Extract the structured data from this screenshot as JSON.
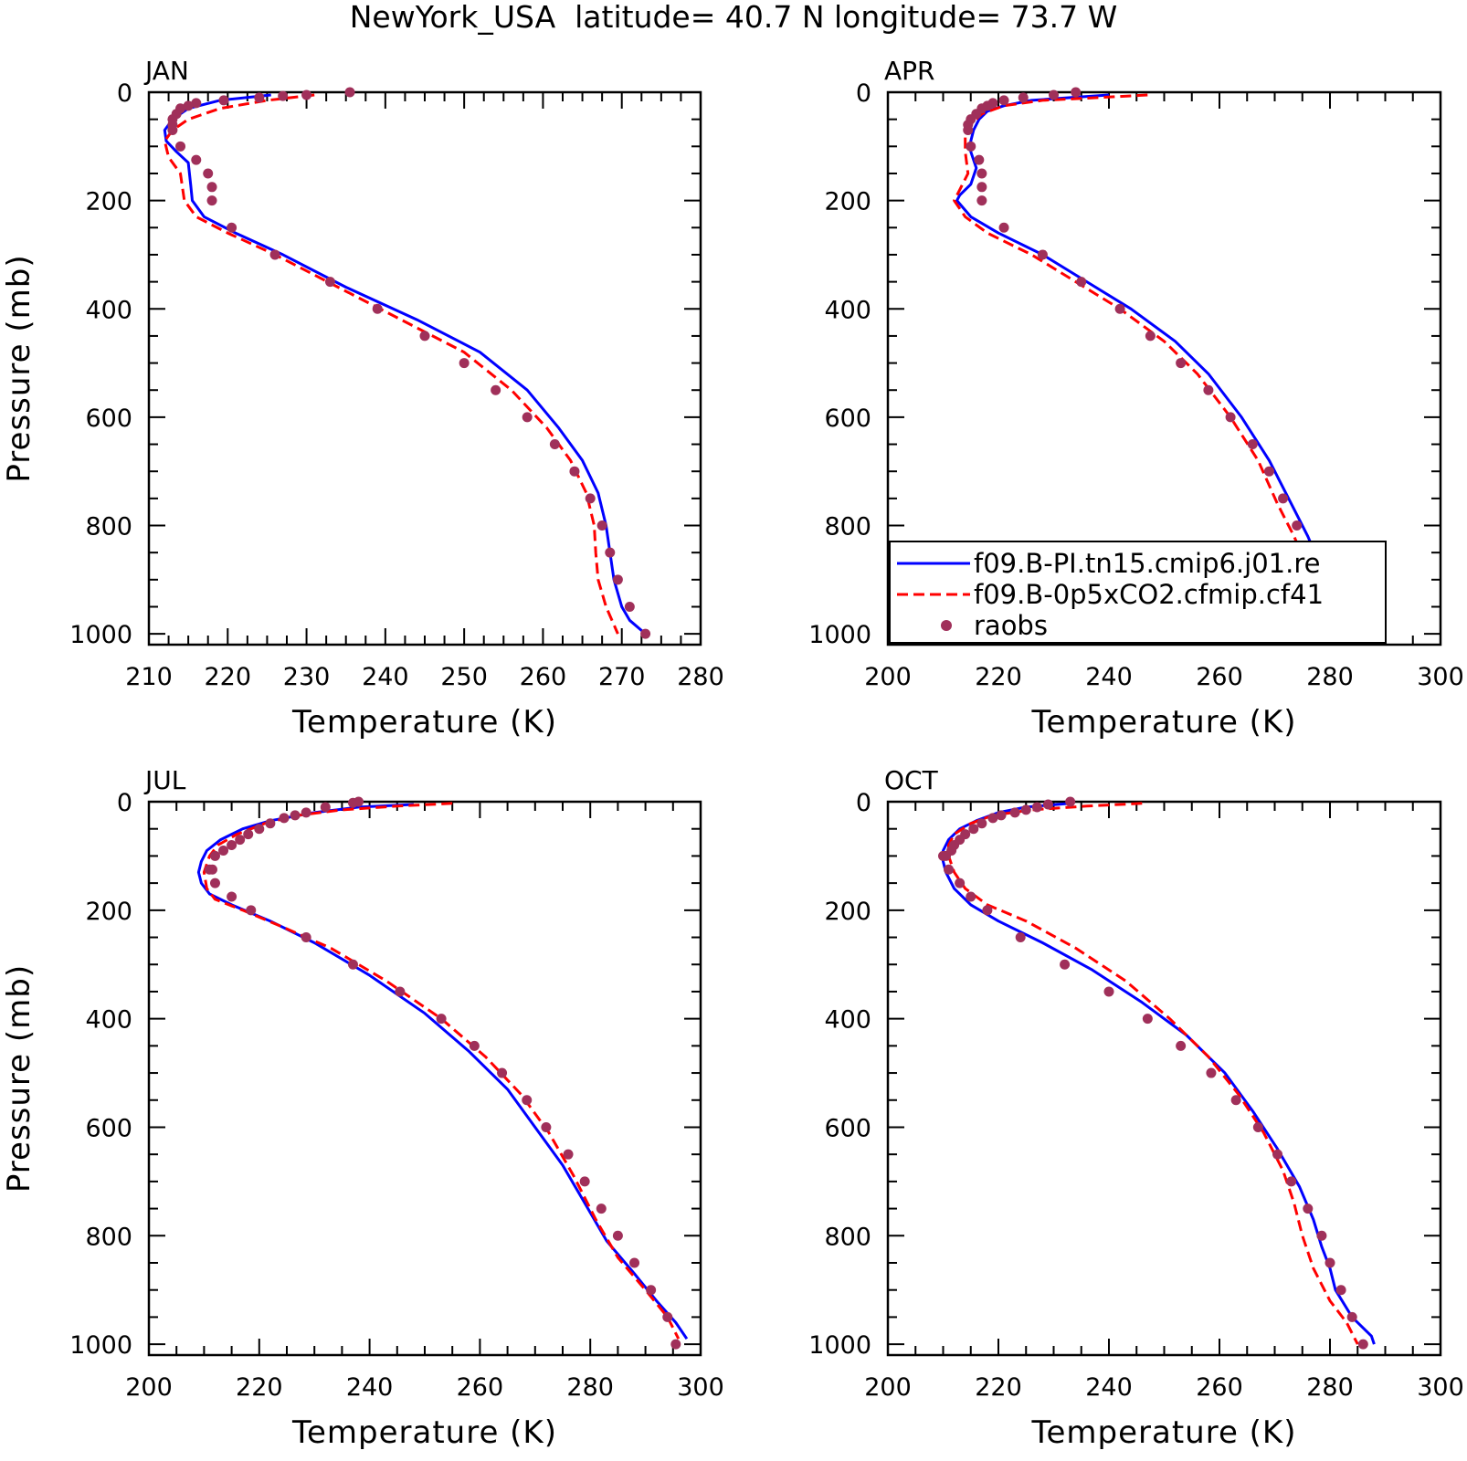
{
  "figure": {
    "title": "NewYork_USA  latitude= 40.7 N longitude= 73.7 W"
  },
  "legend": {
    "entries": [
      {
        "label": "f09.B-PI.tn15.cmip6.j01.re",
        "color": "#0000ff",
        "style": "solid"
      },
      {
        "label": "f09.B-0p5xCO2.cfmip.cf41",
        "color": "#ff0000",
        "style": "dashed"
      },
      {
        "label": "raobs",
        "color": "#a0305a",
        "style": "dots"
      }
    ]
  },
  "chart_data": [
    {
      "type": "line",
      "panel": "JAN",
      "title": "JAN",
      "xlabel": "Temperature (K)",
      "ylabel": "Pressure (mb)",
      "xlim": [
        210,
        280
      ],
      "ylim": [
        1020,
        0
      ],
      "xticks": [
        210,
        220,
        230,
        240,
        250,
        260,
        270,
        280
      ],
      "yticks": [
        0,
        200,
        400,
        600,
        800,
        1000
      ],
      "series": [
        {
          "name": "f09.B-PI.tn15.cmip6.j01.re",
          "color": "#0000ff",
          "style": "solid",
          "x": [
            225.5,
            219,
            215,
            213,
            212,
            212.2,
            213.5,
            215,
            215.3,
            215.5,
            217,
            221,
            227,
            235,
            244,
            252,
            258,
            262,
            265,
            267,
            268,
            268.5,
            269,
            270,
            271,
            273
          ],
          "y": [
            5,
            15,
            30,
            50,
            70,
            90,
            110,
            130,
            170,
            200,
            230,
            260,
            300,
            360,
            420,
            480,
            550,
            620,
            680,
            740,
            800,
            850,
            900,
            950,
            975,
            1000
          ]
        },
        {
          "name": "f09.B-0p5xCO2.cfmip.cf41",
          "color": "#ff0000",
          "style": "dashed",
          "x": [
            231,
            225,
            219,
            215,
            213,
            212,
            212.5,
            214,
            214.3,
            214.5,
            216,
            220,
            226,
            234,
            242,
            250,
            256,
            260.5,
            263.5,
            265.5,
            266.5,
            266.7,
            267,
            268,
            269.5
          ],
          "y": [
            5,
            15,
            30,
            50,
            70,
            90,
            120,
            150,
            180,
            200,
            230,
            260,
            300,
            360,
            420,
            480,
            550,
            620,
            680,
            740,
            800,
            850,
            900,
            950,
            1000
          ]
        },
        {
          "name": "raobs",
          "color": "#a0305a",
          "style": "dots",
          "x": [
            235.5,
            230,
            227,
            224,
            219.5,
            216,
            215,
            214,
            213.5,
            213,
            213,
            213,
            214,
            216,
            217.5,
            218,
            218,
            220.5,
            226,
            233,
            239,
            245,
            250,
            254,
            258,
            261.5,
            264,
            266,
            267.5,
            268.5,
            269.5,
            271,
            273
          ],
          "y": [
            0,
            5,
            7,
            10,
            15,
            20,
            25,
            30,
            40,
            50,
            60,
            70,
            100,
            125,
            150,
            175,
            200,
            250,
            300,
            350,
            400,
            450,
            500,
            550,
            600,
            650,
            700,
            750,
            800,
            850,
            900,
            950,
            1000
          ]
        }
      ]
    },
    {
      "type": "line",
      "panel": "APR",
      "title": "APR",
      "xlabel": "Temperature (K)",
      "ylabel": "",
      "xlim": [
        200,
        300
      ],
      "ylim": [
        1020,
        0
      ],
      "xticks": [
        200,
        220,
        240,
        260,
        280,
        300
      ],
      "yticks": [
        0,
        200,
        400,
        600,
        800,
        1000
      ],
      "series": [
        {
          "name": "f09.B-PI.tn15.cmip6.j01.re",
          "color": "#0000ff",
          "style": "solid",
          "x": [
            240,
            233,
            226,
            221,
            218,
            216.5,
            215.5,
            215,
            215,
            216,
            215,
            213,
            212.5,
            215,
            220,
            228,
            236,
            244,
            252,
            258,
            264,
            269,
            273,
            276,
            278.5,
            282,
            285.5
          ],
          "y": [
            5,
            10,
            15,
            25,
            35,
            50,
            70,
            90,
            110,
            140,
            170,
            190,
            200,
            230,
            260,
            300,
            350,
            400,
            460,
            520,
            600,
            680,
            760,
            820,
            880,
            940,
            1000
          ]
        },
        {
          "name": "f09.B-0p5xCO2.cfmip.cf41",
          "color": "#ff0000",
          "style": "dashed",
          "x": [
            247,
            238,
            228,
            221,
            217,
            215,
            214,
            214,
            214.5,
            213,
            212,
            214,
            218,
            226,
            234,
            242,
            250,
            256,
            262,
            267,
            270.5,
            273.5,
            276,
            280,
            283
          ],
          "y": [
            5,
            10,
            15,
            25,
            40,
            60,
            80,
            110,
            150,
            180,
            200,
            230,
            260,
            300,
            350,
            400,
            460,
            520,
            600,
            680,
            760,
            820,
            880,
            940,
            1000
          ]
        },
        {
          "name": "raobs",
          "color": "#a0305a",
          "style": "dots",
          "x": [
            234,
            230,
            224.5,
            221,
            219,
            218,
            217,
            216,
            215,
            214.5,
            214.5,
            215,
            216.5,
            217,
            217,
            217,
            221,
            228,
            235,
            242,
            247.5,
            253,
            258,
            262,
            266,
            269,
            271.5,
            274,
            276,
            277.5,
            279,
            281,
            283
          ],
          "y": [
            0,
            5,
            10,
            15,
            20,
            25,
            30,
            40,
            50,
            60,
            70,
            100,
            125,
            150,
            175,
            200,
            250,
            300,
            350,
            400,
            450,
            500,
            550,
            600,
            650,
            700,
            750,
            800,
            850,
            900,
            925,
            950,
            1000
          ]
        }
      ]
    },
    {
      "type": "line",
      "panel": "JUL",
      "title": "JUL",
      "xlabel": "Temperature (K)",
      "ylabel": "Pressure (mb)",
      "xlim": [
        200,
        300
      ],
      "ylim": [
        1020,
        0
      ],
      "xticks": [
        200,
        220,
        240,
        260,
        280,
        300
      ],
      "yticks": [
        0,
        200,
        400,
        600,
        800,
        1000
      ],
      "series": [
        {
          "name": "f09.B-PI.tn15.cmip6.j01.re",
          "color": "#0000ff",
          "style": "solid",
          "x": [
            248,
            238,
            230,
            222,
            217,
            213,
            210.5,
            209.5,
            209,
            209.5,
            211,
            215,
            222,
            230,
            240,
            250,
            258,
            265,
            270,
            275,
            279,
            283,
            288,
            292,
            295.5,
            297.5
          ],
          "y": [
            5,
            10,
            20,
            35,
            50,
            70,
            90,
            110,
            130,
            150,
            170,
            190,
            220,
            260,
            320,
            390,
            460,
            530,
            600,
            670,
            740,
            810,
            870,
            920,
            960,
            990
          ]
        },
        {
          "name": "f09.B-0p5xCO2.cfmip.cf41",
          "color": "#ff0000",
          "style": "dashed",
          "x": [
            255,
            245,
            235,
            227,
            221,
            216,
            212.5,
            211,
            210,
            210.5,
            212,
            217,
            224,
            233,
            243,
            253,
            261,
            267.5,
            272.5,
            277,
            281,
            285,
            290,
            294,
            296
          ],
          "y": [
            3,
            8,
            15,
            25,
            40,
            60,
            80,
            100,
            130,
            160,
            180,
            200,
            230,
            270,
            330,
            400,
            470,
            540,
            610,
            690,
            770,
            840,
            900,
            950,
            990
          ]
        },
        {
          "name": "raobs",
          "color": "#a0305a",
          "style": "dots",
          "x": [
            238,
            237,
            232,
            228.5,
            226.5,
            224.5,
            222,
            220,
            218,
            216.5,
            215,
            213.5,
            212,
            211.5,
            211,
            212,
            215,
            218.5,
            228.5,
            237,
            245.5,
            253,
            259,
            264,
            268.5,
            272,
            276,
            279,
            282,
            285,
            288,
            291,
            294,
            295.5
          ],
          "y": [
            0,
            2,
            10,
            20,
            25,
            30,
            40,
            50,
            60,
            70,
            80,
            90,
            100,
            125,
            125,
            150,
            175,
            200,
            250,
            300,
            350,
            400,
            450,
            500,
            550,
            600,
            650,
            700,
            750,
            800,
            850,
            900,
            950,
            1000
          ]
        }
      ]
    },
    {
      "type": "line",
      "panel": "OCT",
      "title": "OCT",
      "xlabel": "Temperature (K)",
      "ylabel": "",
      "xlim": [
        200,
        300
      ],
      "ylim": [
        1020,
        0
      ],
      "xticks": [
        200,
        220,
        240,
        260,
        280,
        300
      ],
      "yticks": [
        0,
        200,
        400,
        600,
        800,
        1000
      ],
      "series": [
        {
          "name": "f09.B-PI.tn15.cmip6.j01.re",
          "color": "#0000ff",
          "style": "solid",
          "x": [
            233,
            225,
            220,
            216,
            213,
            211,
            210,
            210,
            210.5,
            212,
            215,
            220,
            228,
            237,
            246,
            254,
            261,
            266,
            270.5,
            274.5,
            277,
            278.5,
            280,
            281,
            284,
            287.5,
            288
          ],
          "y": [
            3,
            10,
            20,
            35,
            50,
            70,
            90,
            110,
            130,
            160,
            190,
            220,
            260,
            310,
            370,
            430,
            500,
            570,
            640,
            710,
            770,
            820,
            860,
            900,
            950,
            985,
            1000
          ]
        },
        {
          "name": "f09.B-0p5xCO2.cfmip.cf41",
          "color": "#ff0000",
          "style": "dashed",
          "x": [
            246,
            236,
            226,
            219,
            215,
            212,
            211,
            211,
            212,
            214,
            218,
            225,
            234,
            243,
            251,
            258,
            263.5,
            268,
            271.5,
            273.5,
            275,
            277,
            280,
            283,
            285
          ],
          "y": [
            3,
            8,
            15,
            25,
            40,
            60,
            80,
            100,
            130,
            160,
            190,
            220,
            270,
            330,
            400,
            470,
            540,
            610,
            680,
            740,
            800,
            860,
            920,
            960,
            1000
          ]
        },
        {
          "name": "raobs",
          "color": "#a0305a",
          "style": "dots",
          "x": [
            233,
            229,
            227,
            225,
            223,
            220.5,
            219,
            217,
            215.5,
            214,
            213,
            212,
            211.5,
            210.5,
            210,
            211,
            213,
            215,
            218,
            224,
            232,
            240,
            247,
            253,
            258.5,
            263,
            267,
            270.5,
            273,
            276,
            278.5,
            280,
            282,
            284,
            286
          ],
          "y": [
            0,
            5,
            10,
            15,
            20,
            25,
            30,
            40,
            50,
            60,
            70,
            80,
            90,
            100,
            100,
            125,
            150,
            175,
            200,
            250,
            300,
            350,
            400,
            450,
            500,
            550,
            600,
            650,
            700,
            750,
            800,
            850,
            900,
            950,
            1000
          ]
        }
      ]
    }
  ]
}
